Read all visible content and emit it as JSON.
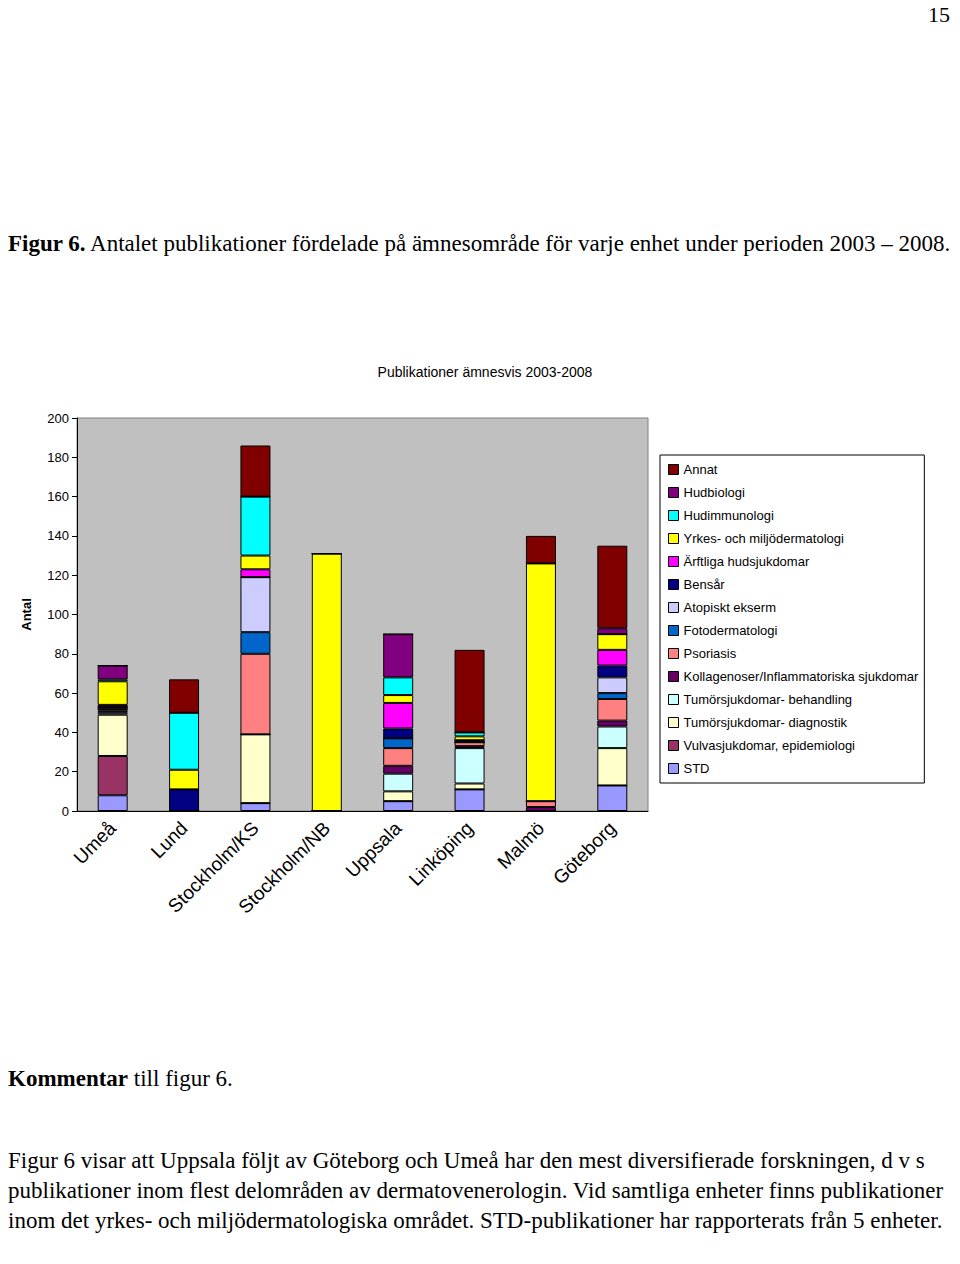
{
  "page_number": "15",
  "caption": {
    "label": "Figur 6.",
    "text": "Antalet publikationer fördelade på ämnesområde för varje enhet under perioden 2003 – 2008."
  },
  "chart_data": {
    "type": "bar",
    "stacked": true,
    "title": "Publikationer ämnesvis 2003-2008",
    "ylabel": "Antal",
    "categories": [
      "Umeå",
      "Lund",
      "Stockholm/KS",
      "Stockholm/NB",
      "Uppsala",
      "Linköping",
      "Malmö",
      "Göteborg"
    ],
    "ylim": [
      0,
      200
    ],
    "yticks": [
      0,
      20,
      40,
      60,
      80,
      100,
      120,
      140,
      160,
      180,
      200
    ],
    "grid": false,
    "legend": "right",
    "series": [
      {
        "name": "Annat",
        "color": "#800000",
        "values": [
          0,
          17,
          26,
          0,
          0,
          42,
          14,
          42
        ]
      },
      {
        "name": "Hudbiologi",
        "color": "#800080",
        "values": [
          7,
          0,
          0,
          0,
          22,
          0,
          0,
          3
        ]
      },
      {
        "name": "Hudimmunologi",
        "color": "#00FFFF",
        "values": [
          1,
          29,
          30,
          0,
          9,
          2,
          0,
          0
        ]
      },
      {
        "name": "Yrkes- och miljödermatologi",
        "color": "#FFFF00",
        "values": [
          12,
          10,
          7,
          131,
          4,
          2,
          121,
          8
        ]
      },
      {
        "name": "Ärftliga hudsjukdomar",
        "color": "#FF00FF",
        "values": [
          1,
          0,
          4,
          0,
          13,
          0,
          0,
          8
        ]
      },
      {
        "name": "Bensår",
        "color": "#000080",
        "values": [
          0,
          11,
          0,
          0,
          5,
          1,
          0,
          6
        ]
      },
      {
        "name": "Atopiskt ekserm",
        "color": "#CCCCFF",
        "values": [
          1,
          0,
          28,
          0,
          0,
          0,
          0,
          8
        ]
      },
      {
        "name": "Fotodermatologi",
        "color": "#0066CC",
        "values": [
          0,
          0,
          11,
          0,
          5,
          0,
          0,
          3
        ]
      },
      {
        "name": "Psoriasis",
        "color": "#FF8080",
        "values": [
          1,
          0,
          41,
          0,
          9,
          2,
          3,
          11
        ]
      },
      {
        "name": "Kollagenoser/Inflammatoriska sjukdomar",
        "color": "#660066",
        "values": [
          1,
          0,
          0,
          0,
          4,
          1,
          2,
          3
        ]
      },
      {
        "name": "Tumörsjukdomar- behandling",
        "color": "#CCFFFF",
        "values": [
          1,
          0,
          0,
          0,
          9,
          18,
          0,
          11
        ]
      },
      {
        "name": "Tumörsjukdomar- diagnostik",
        "color": "#FFFFCC",
        "values": [
          21,
          0,
          35,
          0,
          5,
          3,
          0,
          19
        ]
      },
      {
        "name": "Vulvasjukdomar, epidemiologi",
        "color": "#993366",
        "values": [
          20,
          0,
          0,
          0,
          0,
          0,
          0,
          0
        ]
      },
      {
        "name": "STD",
        "color": "#9999FF",
        "values": [
          8,
          0,
          4,
          0,
          5,
          11,
          0,
          13
        ]
      }
    ]
  },
  "comment": {
    "label": "Kommentar",
    "text": "till figur 6.",
    "paragraph": "Figur 6 visar att Uppsala följt av Göteborg och Umeå har den mest diversifierade forskningen, d v s publikationer inom flest delområden av dermatovenerologin. Vid samtliga enheter finns publikationer inom det yrkes- och miljödermatologiska området. STD-publikationer har rapporterats från 5 enheter."
  }
}
